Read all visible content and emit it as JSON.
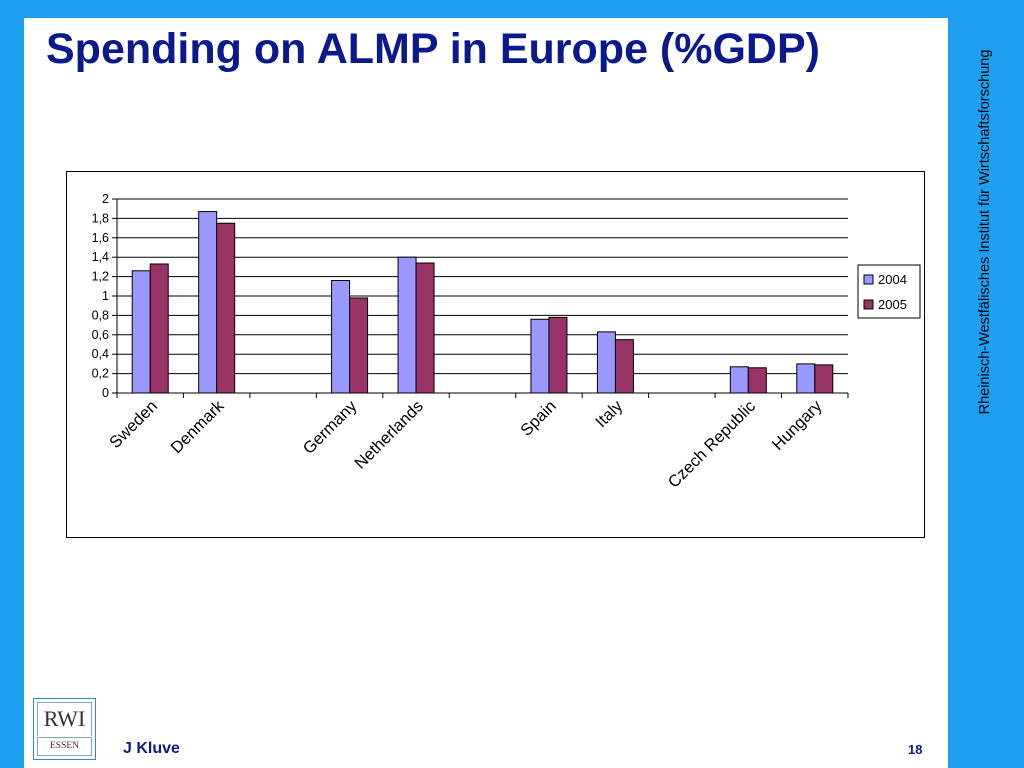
{
  "slide": {
    "title": "Spending on ALMP in Europe (%GDP)",
    "side_text": "Rheinisch-Westfälisches Institut für Wirtschaftsforschung",
    "author": "J Kluve",
    "page_number": "18",
    "logo": {
      "top": "RWI",
      "bottom": "ESSEN"
    }
  },
  "colors": {
    "frame": "#1ea0f0",
    "title": "#0a1a8c",
    "series_2004": "#9999ff",
    "series_2005": "#993366"
  },
  "chart_data": {
    "type": "bar",
    "title": "",
    "xlabel": "",
    "ylabel": "",
    "ylim": [
      0,
      2
    ],
    "yticks": [
      0,
      0.2,
      0.4,
      0.6,
      0.8,
      1,
      1.2,
      1.4,
      1.6,
      1.8,
      2
    ],
    "ytick_labels": [
      "0",
      "0,2",
      "0,4",
      "0,6",
      "0,8",
      "1",
      "1,2",
      "1,4",
      "1,6",
      "1,8",
      "2"
    ],
    "grid": true,
    "legend_position": "right",
    "categories": [
      "Sweden",
      "Denmark",
      "",
      "Germany",
      "Netherlands",
      "",
      "Spain",
      "Italy",
      "",
      "Czech Republic",
      "Hungary"
    ],
    "series": [
      {
        "name": "2004",
        "color": "#9999ff",
        "values": [
          1.26,
          1.87,
          null,
          1.16,
          1.4,
          null,
          0.76,
          0.63,
          null,
          0.27,
          0.3
        ]
      },
      {
        "name": "2005",
        "color": "#993366",
        "values": [
          1.33,
          1.75,
          null,
          0.98,
          1.34,
          null,
          0.78,
          0.55,
          null,
          0.26,
          0.29
        ]
      }
    ]
  }
}
